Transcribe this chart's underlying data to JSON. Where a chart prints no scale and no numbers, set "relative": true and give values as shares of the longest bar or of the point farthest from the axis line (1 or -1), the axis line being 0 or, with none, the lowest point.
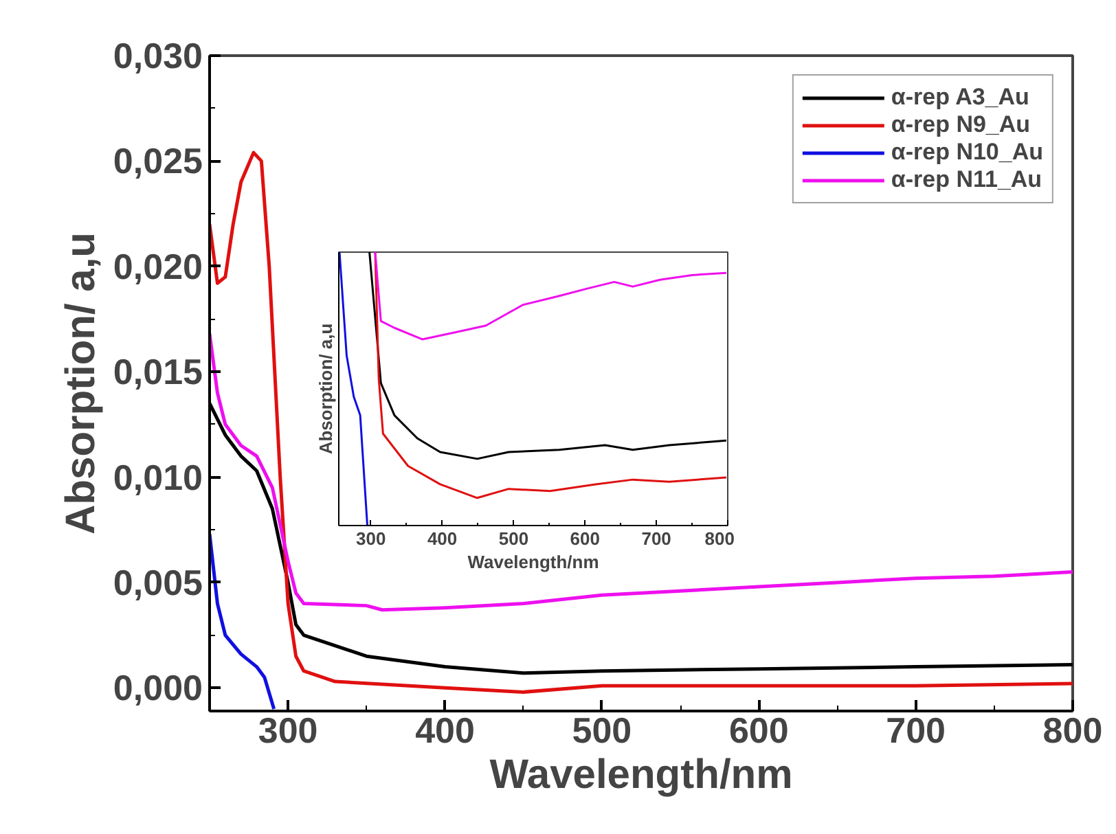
{
  "chart_data": [
    {
      "type": "line",
      "xlabel": "Wavelength/nm",
      "ylabel": "Absorption/ a,u",
      "xlim": [
        250,
        800
      ],
      "ylim": [
        -0.0011,
        0.03
      ],
      "xticks": [
        300,
        400,
        500,
        600,
        700,
        800
      ],
      "yticks": [
        {
          "value": 0.0,
          "label": "0,000"
        },
        {
          "value": 0.005,
          "label": "0,005"
        },
        {
          "value": 0.01,
          "label": "0,010"
        },
        {
          "value": 0.015,
          "label": "0,015"
        },
        {
          "value": 0.02,
          "label": "0,020"
        },
        {
          "value": 0.025,
          "label": "0,025"
        },
        {
          "value": 0.03,
          "label": "0,030"
        }
      ],
      "legend": "top right",
      "grid": false,
      "marker": "none",
      "line_style": "solid",
      "series": [
        {
          "name": "α-rep A3_Au",
          "color": "#000000",
          "x": [
            250,
            260,
            270,
            280,
            290,
            300,
            305,
            310,
            330,
            350,
            400,
            450,
            500,
            600,
            700,
            800
          ],
          "values": [
            0.0135,
            0.012,
            0.011,
            0.0103,
            0.0085,
            0.005,
            0.003,
            0.0025,
            0.002,
            0.0015,
            0.001,
            0.0007,
            0.0008,
            0.0009,
            0.001,
            0.0011
          ]
        },
        {
          "name": "α-rep N9_Au",
          "color": "#e01010",
          "x": [
            250,
            255,
            260,
            265,
            270,
            278,
            283,
            288,
            295,
            300,
            305,
            310,
            330,
            400,
            450,
            500,
            600,
            700,
            800
          ],
          "values": [
            0.022,
            0.0192,
            0.0195,
            0.022,
            0.024,
            0.0254,
            0.025,
            0.02,
            0.01,
            0.004,
            0.0015,
            0.0008,
            0.0003,
            0.0,
            -0.0002,
            0.0001,
            0.0001,
            0.0001,
            0.0002
          ]
        },
        {
          "name": "α-rep N10_Au",
          "color": "#1010e0",
          "x": [
            250,
            255,
            260,
            270,
            280,
            285,
            291
          ],
          "values": [
            0.0073,
            0.004,
            0.0025,
            0.0016,
            0.001,
            0.0005,
            -0.001
          ]
        },
        {
          "name": "α-rep N11_Au",
          "color": "#ee10ee",
          "x": [
            250,
            255,
            260,
            270,
            280,
            290,
            300,
            305,
            310,
            350,
            360,
            400,
            450,
            500,
            550,
            600,
            650,
            700,
            750,
            800
          ],
          "values": [
            0.0168,
            0.014,
            0.0125,
            0.0115,
            0.011,
            0.0095,
            0.006,
            0.0045,
            0.004,
            0.0039,
            0.0037,
            0.0038,
            0.004,
            0.0044,
            0.0046,
            0.0048,
            0.005,
            0.0052,
            0.0053,
            0.0055
          ]
        }
      ]
    },
    {
      "type": "line",
      "xlabel": "Wavelength/nm",
      "ylabel": "Absorption/ a,u",
      "relative": true,
      "xlim": [
        255,
        800
      ],
      "xticks": [
        300,
        400,
        500,
        600,
        700,
        800
      ],
      "tick_labels": "x",
      "grid": false,
      "marker": "none",
      "line_style": "solid",
      "series": [
        {
          "color": "#000000",
          "x": [
            298,
            314,
            333,
            365,
            397,
            449,
            493,
            564,
            628,
            667,
            718,
            798
          ],
          "values": [
            1.0,
            0.521,
            0.403,
            0.319,
            0.269,
            0.244,
            0.269,
            0.277,
            0.294,
            0.277,
            0.294,
            0.311
          ]
        },
        {
          "color": "#e01010",
          "x": [
            306,
            311,
            317,
            352,
            397,
            449,
            493,
            551,
            615,
            667,
            718,
            798
          ],
          "values": [
            1.0,
            0.538,
            0.336,
            0.218,
            0.151,
            0.101,
            0.134,
            0.126,
            0.151,
            0.168,
            0.16,
            0.176
          ]
        },
        {
          "color": "#1010e0",
          "x": [
            256,
            266,
            276,
            285,
            295
          ],
          "values": [
            1.0,
            0.622,
            0.471,
            0.403,
            0.0
          ]
        },
        {
          "color": "#ee10ee",
          "x": [
            306,
            314,
            333,
            372,
            417,
            461,
            513,
            564,
            602,
            641,
            667,
            705,
            750,
            798
          ],
          "values": [
            1.0,
            0.748,
            0.723,
            0.681,
            0.706,
            0.731,
            0.807,
            0.84,
            0.866,
            0.891,
            0.874,
            0.899,
            0.916,
            0.924
          ]
        }
      ]
    }
  ]
}
